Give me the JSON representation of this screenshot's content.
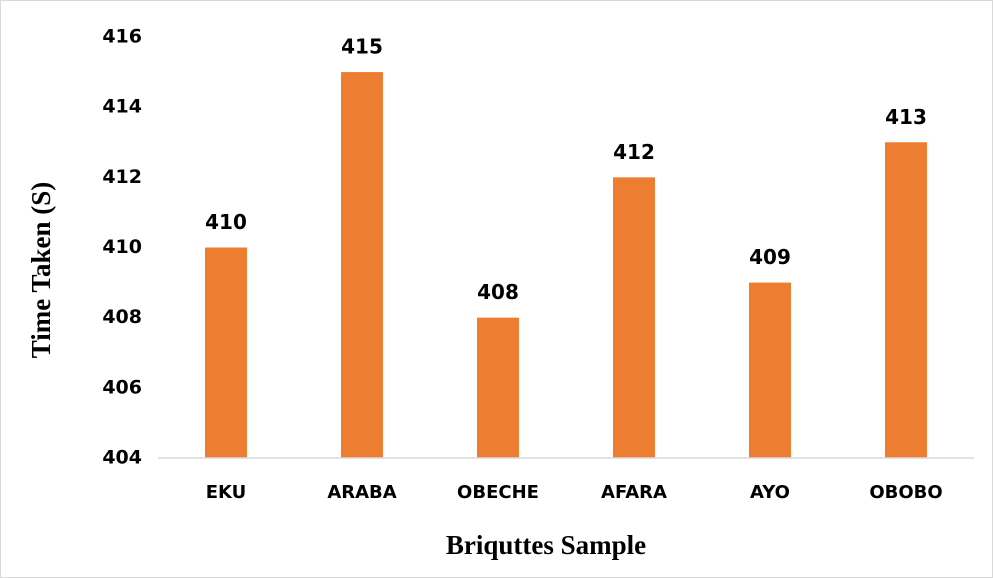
{
  "chart_data": {
    "type": "bar",
    "xlabel": "Briquttes Sample",
    "ylabel": "Time Taken (S)",
    "categories": [
      "EKU",
      "ARABA",
      "OBECHE",
      "AFARA",
      "AYO",
      "OBOBO"
    ],
    "values": [
      410,
      415,
      408,
      412,
      409,
      413
    ],
    "color": "#ed7d31",
    "ylim": [
      404,
      416
    ],
    "yticks": [
      404,
      406,
      408,
      410,
      412,
      414,
      416
    ],
    "grid": false,
    "data_labels": true
  }
}
